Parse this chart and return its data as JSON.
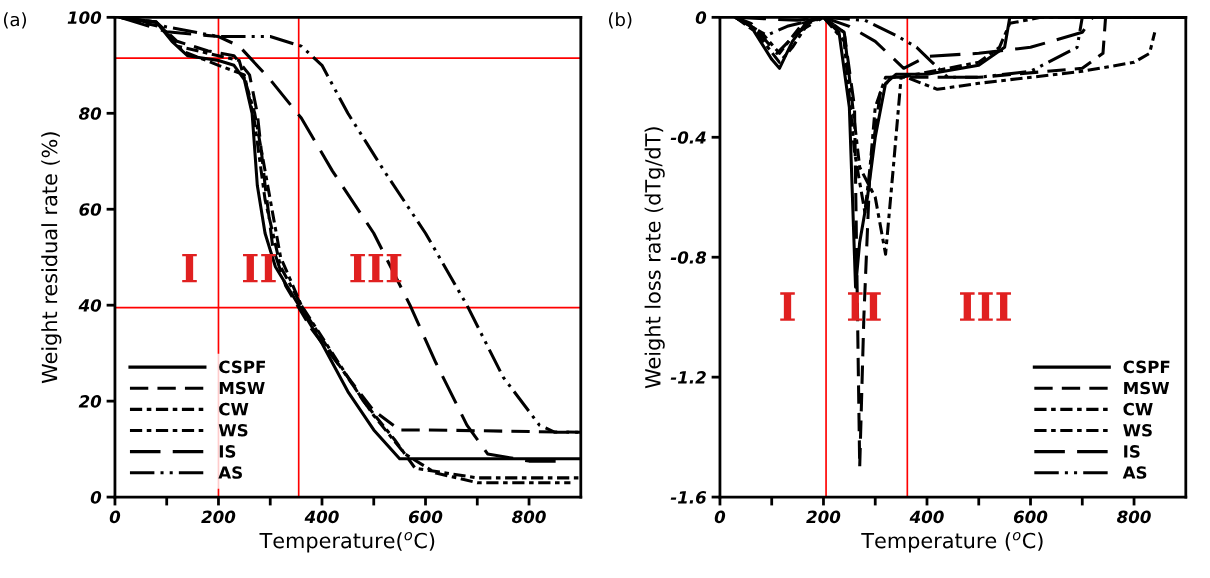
{
  "chart_data": [
    {
      "type": "line",
      "title": "(a)",
      "xlabel": "Temperature($^{o}$C)",
      "ylabel": "Weight residual rate (%)",
      "xlim": [
        0,
        900
      ],
      "ylim": [
        0,
        100
      ],
      "xticks": [
        0,
        {
          "value": 100,
          "label": null
        },
        200,
        {
          "value": 300,
          "label": null
        },
        400,
        {
          "value": 500,
          "label": null
        },
        600,
        {
          "value": 700,
          "label": null
        },
        800
      ],
      "yticks": [
        0,
        20,
        40,
        60,
        80,
        100
      ],
      "legend": "bottom left",
      "grid": false,
      "ref_lines": [
        {
          "axis": "x",
          "value": 200,
          "color": "#ff0000"
        },
        {
          "axis": "x",
          "value": 355,
          "color": "#ff0000"
        },
        {
          "axis": "y",
          "value": 91.5,
          "color": "#ff0000"
        },
        {
          "axis": "y",
          "value": 39.5,
          "color": "#ff0000"
        }
      ],
      "annotations": [
        "I",
        "II",
        "III"
      ],
      "series": [
        {
          "name": "CSPF",
          "color": "#000000",
          "line_style": "solid",
          "x": [
            10,
            80,
            110,
            140,
            200,
            230,
            250,
            265,
            275,
            290,
            310,
            355,
            400,
            450,
            500,
            550,
            900
          ],
          "values": [
            100,
            99,
            95,
            92,
            91,
            90,
            87,
            80,
            65,
            55,
            48,
            40,
            32,
            22,
            14,
            8,
            8
          ]
        },
        {
          "name": "MSW",
          "color": "#000000",
          "line_style": "dashed",
          "x": [
            10,
            80,
            120,
            180,
            230,
            260,
            275,
            290,
            305,
            330,
            380,
            450,
            500,
            550,
            600,
            900
          ],
          "values": [
            100,
            99,
            95,
            93,
            92,
            88,
            80,
            65,
            52,
            44,
            35,
            25,
            18,
            14,
            14,
            13.5
          ]
        },
        {
          "name": "CW",
          "color": "#000000",
          "line_style": "dashdot",
          "x": [
            10,
            80,
            120,
            200,
            240,
            270,
            295,
            320,
            360,
            420,
            480,
            540,
            580,
            700,
            900
          ],
          "values": [
            100,
            99,
            94,
            92,
            91,
            80,
            65,
            50,
            40,
            30,
            20,
            12,
            6,
            4,
            4
          ]
        },
        {
          "name": "WS",
          "color": "#000000",
          "line_style": "dashdot",
          "x": [
            10,
            90,
            130,
            200,
            250,
            270,
            290,
            320,
            370,
            430,
            500,
            560,
            620,
            700,
            880
          ],
          "values": [
            100,
            98,
            93,
            90,
            88,
            78,
            62,
            48,
            38,
            28,
            17,
            9,
            5,
            3,
            3
          ]
        },
        {
          "name": "IS",
          "color": "#000000",
          "line_style": "longdash",
          "x": [
            10,
            100,
            200,
            240,
            300,
            360,
            420,
            500,
            570,
            620,
            680,
            720,
            800,
            870
          ],
          "values": [
            100,
            97,
            96,
            94,
            87,
            79,
            68,
            55,
            40,
            28,
            15,
            9,
            7.5,
            7.5
          ]
        },
        {
          "name": "AS",
          "color": "#000000",
          "line_style": "dashdotdot",
          "x": [
            20,
            100,
            200,
            300,
            360,
            400,
            450,
            520,
            600,
            680,
            750,
            820,
            850,
            900
          ],
          "values": [
            100,
            98,
            96,
            96,
            94,
            90,
            80,
            68,
            55,
            40,
            25,
            15,
            13.5,
            13.5
          ]
        }
      ]
    },
    {
      "type": "line",
      "title": "(b)",
      "xlabel": "Temperature ($^{o}$C)",
      "ylabel": "Weight loss rate (dTg/dT)",
      "xlim": [
        0,
        900
      ],
      "ylim": [
        -1.6,
        0
      ],
      "xticks": [
        0,
        {
          "value": 100,
          "label": null
        },
        200,
        {
          "value": 300,
          "label": null
        },
        400,
        {
          "value": 500,
          "label": null
        },
        600,
        {
          "value": 700,
          "label": null
        },
        800
      ],
      "yticks": [
        -1.6,
        -1.2,
        -0.8,
        -0.4,
        0
      ],
      "legend": "bottom right",
      "grid": false,
      "ref_lines": [
        {
          "axis": "x",
          "value": 205,
          "color": "#ff0000"
        },
        {
          "axis": "x",
          "value": 362,
          "color": "#ff0000"
        }
      ],
      "annotations": [
        "I",
        "II",
        "III"
      ],
      "series": [
        {
          "name": "CSPF",
          "color": "#000000",
          "line_style": "solid",
          "x": [
            30,
            60,
            100,
            115,
            140,
            170,
            200,
            230,
            250,
            262,
            270,
            285,
            300,
            320,
            340,
            400,
            500,
            550,
            560,
            900
          ],
          "values": [
            0,
            -0.03,
            -0.14,
            -0.17,
            -0.08,
            -0.01,
            0,
            -0.05,
            -0.3,
            -0.9,
            -0.75,
            -0.6,
            -0.4,
            -0.22,
            -0.19,
            -0.19,
            -0.16,
            -0.1,
            0,
            0
          ]
        },
        {
          "name": "MSW",
          "color": "#000000",
          "line_style": "dashed",
          "x": [
            30,
            60,
            110,
            150,
            200,
            240,
            260,
            270,
            278,
            290,
            310,
            330,
            360,
            500,
            700,
            740,
            745,
            900
          ],
          "values": [
            0,
            -0.02,
            -0.12,
            -0.05,
            0,
            -0.05,
            -0.3,
            -1.5,
            -1.0,
            -0.5,
            -0.25,
            -0.2,
            -0.2,
            -0.2,
            -0.17,
            -0.12,
            0,
            0
          ]
        },
        {
          "name": "CW",
          "color": "#000000",
          "line_style": "dashdot",
          "x": [
            30,
            70,
            115,
            140,
            170,
            200,
            240,
            260,
            270,
            280,
            290,
            300,
            320,
            360,
            420,
            500,
            700,
            800,
            830,
            840
          ],
          "values": [
            0,
            -0.05,
            -0.15,
            -0.1,
            -0.02,
            0,
            -0.08,
            -0.45,
            -0.55,
            -0.65,
            -0.5,
            -0.3,
            -0.2,
            -0.2,
            -0.24,
            -0.22,
            -0.18,
            -0.15,
            -0.12,
            -0.05
          ]
        },
        {
          "name": "WS",
          "color": "#000000",
          "line_style": "dashdot",
          "x": [
            30,
            80,
            115,
            160,
            200,
            240,
            270,
            300,
            320,
            335,
            350,
            380,
            500,
            540,
            560,
            620,
            900
          ],
          "values": [
            0,
            -0.05,
            -0.12,
            -0.02,
            0,
            -0.05,
            -0.5,
            -0.6,
            -0.79,
            -0.5,
            -0.2,
            -0.19,
            -0.15,
            -0.1,
            -0.02,
            0,
            0
          ]
        },
        {
          "name": "IS",
          "color": "#000000",
          "line_style": "longdash",
          "x": [
            30,
            150,
            200,
            250,
            300,
            355,
            400,
            500,
            600,
            700,
            720,
            900
          ],
          "values": [
            0,
            -0.01,
            0,
            -0.03,
            -0.08,
            -0.17,
            -0.13,
            -0.12,
            -0.1,
            -0.05,
            0,
            0
          ]
        },
        {
          "name": "AS",
          "color": "#000000",
          "line_style": "dashdotdot",
          "x": [
            30,
            90,
            130,
            200,
            280,
            340,
            380,
            410,
            440,
            500,
            600,
            690,
            700
          ],
          "values": [
            0,
            -0.06,
            -0.03,
            0,
            -0.01,
            -0.06,
            -0.1,
            -0.15,
            -0.2,
            -0.2,
            -0.18,
            -0.1,
            0
          ]
        }
      ]
    }
  ]
}
